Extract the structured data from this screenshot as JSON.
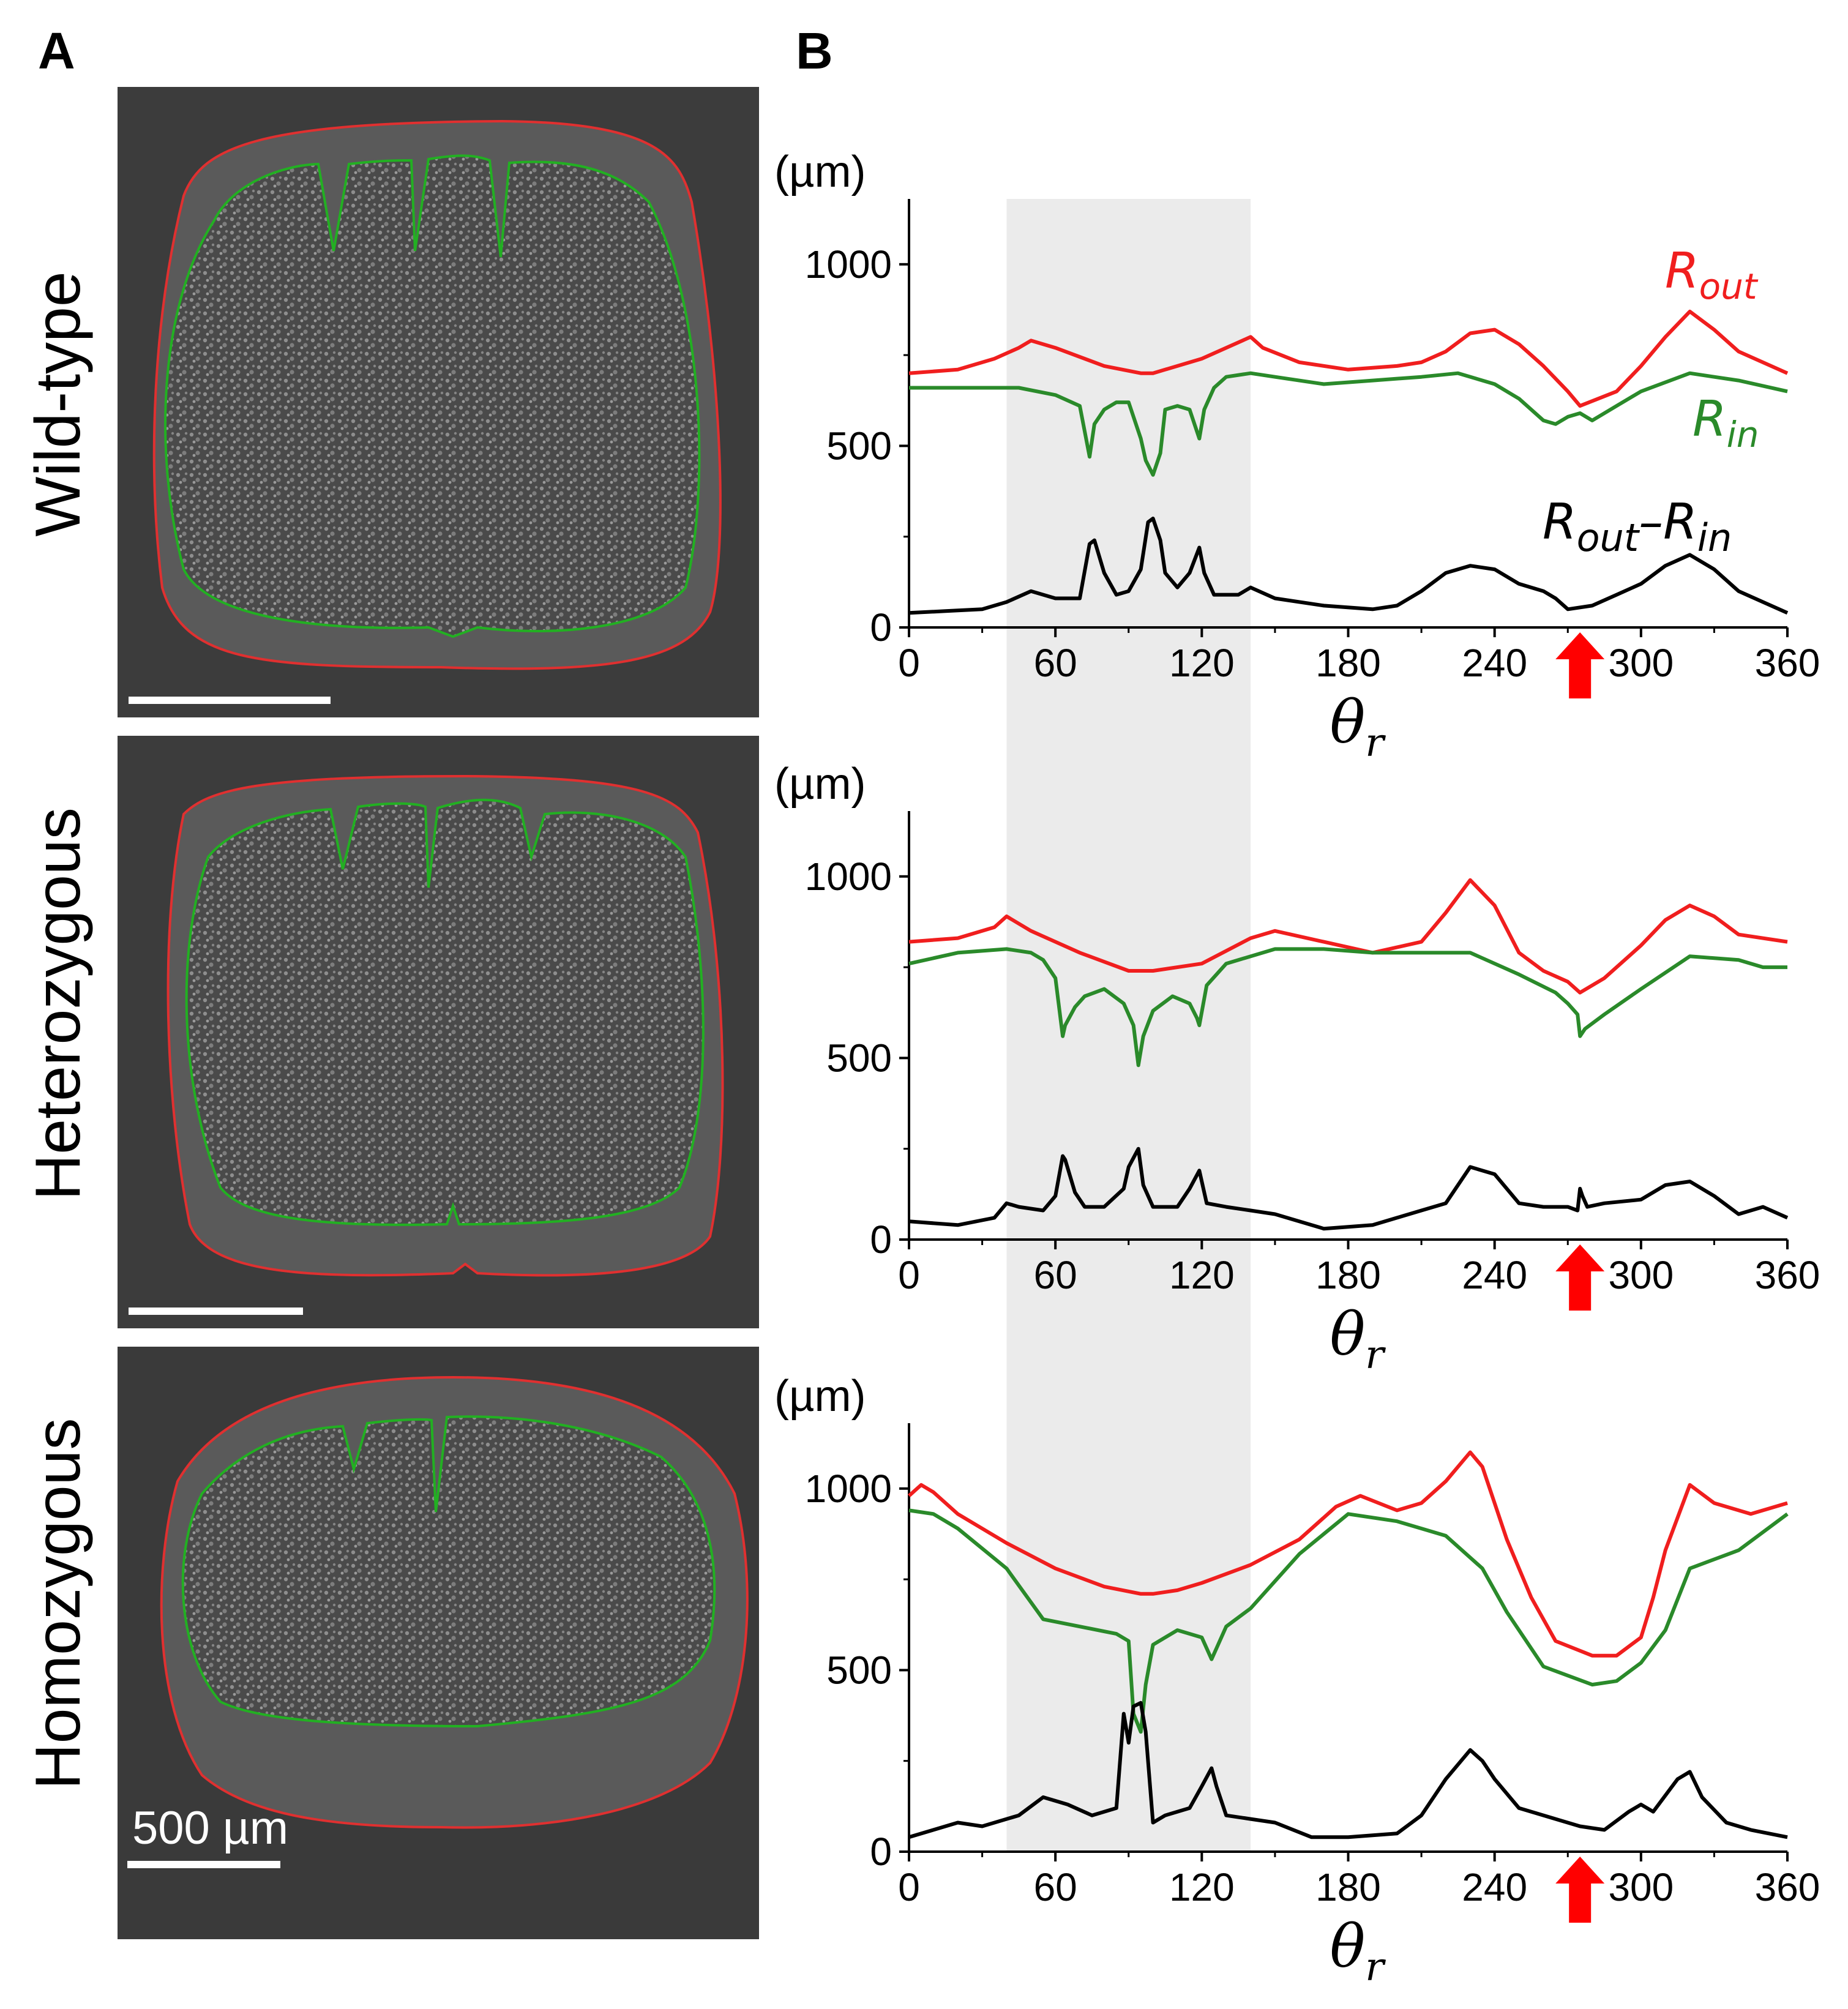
{
  "figure": {
    "panel_a_label": "A",
    "panel_b_label": "B",
    "scale_bar_label": "500 µm",
    "rows": [
      {
        "label": "Wild-type"
      },
      {
        "label": "Heterozygous"
      },
      {
        "label": "Homozygous"
      }
    ],
    "legend": {
      "rout_base": "R",
      "rout_sub": "out",
      "rin_base": "R",
      "rin_sub": "in",
      "diff_a_base": "R",
      "diff_a_sub": "out",
      "diff_minus": "–",
      "diff_b_base": "R",
      "diff_b_sub": "in"
    }
  },
  "colors": {
    "rout": "#f01e1e",
    "rin": "#2a8a2a",
    "diff": "#000000",
    "arrow": "#ff0000",
    "shade": "#ebebeb",
    "micro_bg": "#3c3c3c"
  },
  "chart_data": [
    {
      "type": "line",
      "title": "Wild-type",
      "ylabel": "(µm)",
      "xlabel_base": "θ",
      "xlabel_sub": "r",
      "xlim": [
        0,
        360
      ],
      "ylim": [
        0,
        1180
      ],
      "xticks": [
        "0",
        "60",
        "120",
        "180",
        "240",
        "300",
        "360"
      ],
      "yticks": [
        "0",
        "500",
        "1000"
      ],
      "shaded_x": [
        40,
        140
      ],
      "arrow_x": 275,
      "series": [
        {
          "name": "R_out",
          "x": [
            0,
            20,
            35,
            45,
            50,
            60,
            80,
            95,
            100,
            120,
            140,
            145,
            160,
            180,
            200,
            210,
            220,
            230,
            240,
            250,
            260,
            270,
            275,
            290,
            300,
            310,
            320,
            330,
            340,
            360
          ],
          "y": [
            700,
            710,
            740,
            770,
            790,
            770,
            720,
            700,
            700,
            740,
            800,
            770,
            730,
            710,
            720,
            730,
            760,
            810,
            820,
            780,
            720,
            650,
            610,
            650,
            720,
            800,
            870,
            820,
            760,
            700
          ]
        },
        {
          "name": "R_in",
          "x": [
            0,
            30,
            45,
            60,
            70,
            74,
            76,
            80,
            85,
            90,
            95,
            97,
            100,
            103,
            105,
            110,
            115,
            119,
            121,
            125,
            130,
            140,
            150,
            170,
            190,
            210,
            225,
            240,
            250,
            260,
            265,
            270,
            275,
            280,
            290,
            300,
            320,
            330,
            340,
            360
          ],
          "y": [
            660,
            660,
            660,
            640,
            610,
            470,
            560,
            600,
            620,
            620,
            520,
            460,
            420,
            480,
            600,
            610,
            600,
            520,
            600,
            660,
            690,
            700,
            690,
            670,
            680,
            690,
            700,
            670,
            630,
            570,
            560,
            580,
            590,
            570,
            610,
            650,
            700,
            690,
            680,
            650
          ]
        },
        {
          "name": "R_out-R_in",
          "x": [
            0,
            15,
            30,
            40,
            50,
            60,
            70,
            74,
            76,
            80,
            85,
            90,
            95,
            98,
            100,
            103,
            105,
            110,
            115,
            119,
            121,
            125,
            135,
            140,
            150,
            170,
            190,
            200,
            210,
            220,
            230,
            240,
            250,
            260,
            265,
            270,
            280,
            290,
            300,
            310,
            320,
            330,
            340,
            350,
            360
          ],
          "y": [
            40,
            45,
            50,
            70,
            100,
            80,
            80,
            230,
            240,
            150,
            90,
            100,
            160,
            290,
            300,
            240,
            150,
            110,
            150,
            220,
            150,
            90,
            90,
            110,
            80,
            60,
            50,
            60,
            100,
            150,
            170,
            160,
            120,
            100,
            80,
            50,
            60,
            90,
            120,
            170,
            200,
            160,
            100,
            70,
            40
          ]
        }
      ]
    },
    {
      "type": "line",
      "title": "Heterozygous",
      "ylabel": "(µm)",
      "xlabel_base": "θ",
      "xlabel_sub": "r",
      "xlim": [
        0,
        360
      ],
      "ylim": [
        0,
        1180
      ],
      "xticks": [
        "0",
        "60",
        "120",
        "180",
        "240",
        "300",
        "360"
      ],
      "yticks": [
        "0",
        "500",
        "1000"
      ],
      "shaded_x": [
        40,
        140
      ],
      "arrow_x": 275,
      "series": [
        {
          "name": "R_out",
          "x": [
            0,
            20,
            35,
            40,
            50,
            70,
            90,
            100,
            120,
            140,
            150,
            170,
            190,
            210,
            220,
            230,
            240,
            250,
            260,
            270,
            275,
            285,
            300,
            310,
            320,
            330,
            340,
            360
          ],
          "y": [
            820,
            830,
            860,
            890,
            850,
            790,
            740,
            740,
            760,
            830,
            850,
            820,
            790,
            820,
            900,
            990,
            920,
            790,
            740,
            710,
            680,
            720,
            810,
            880,
            920,
            890,
            840,
            820
          ]
        },
        {
          "name": "R_in",
          "x": [
            0,
            20,
            40,
            50,
            55,
            60,
            63,
            64,
            68,
            72,
            80,
            88,
            92,
            94,
            96,
            100,
            108,
            115,
            118,
            119,
            122,
            130,
            150,
            170,
            190,
            210,
            230,
            250,
            265,
            270,
            274,
            275,
            277,
            285,
            300,
            320,
            340,
            350,
            360
          ],
          "y": [
            760,
            790,
            800,
            790,
            770,
            720,
            560,
            590,
            640,
            670,
            690,
            650,
            590,
            480,
            560,
            630,
            670,
            650,
            610,
            590,
            700,
            760,
            800,
            800,
            790,
            790,
            790,
            730,
            680,
            650,
            620,
            560,
            580,
            620,
            690,
            780,
            770,
            750,
            750
          ]
        },
        {
          "name": "R_out-R_in",
          "x": [
            0,
            20,
            35,
            40,
            45,
            55,
            60,
            63,
            64,
            68,
            72,
            80,
            88,
            90,
            94,
            96,
            100,
            110,
            115,
            119,
            122,
            130,
            140,
            150,
            170,
            190,
            200,
            210,
            220,
            230,
            240,
            250,
            260,
            270,
            274,
            275,
            276,
            278,
            285,
            300,
            310,
            320,
            330,
            340,
            350,
            360
          ],
          "y": [
            50,
            40,
            60,
            100,
            90,
            80,
            120,
            230,
            220,
            130,
            90,
            90,
            140,
            200,
            250,
            150,
            90,
            90,
            140,
            190,
            100,
            90,
            80,
            70,
            30,
            40,
            60,
            80,
            100,
            200,
            180,
            100,
            90,
            90,
            80,
            140,
            120,
            90,
            100,
            110,
            150,
            160,
            120,
            70,
            90,
            60
          ]
        }
      ]
    },
    {
      "type": "line",
      "title": "Homozygous",
      "ylabel": "(µm)",
      "xlabel_base": "θ",
      "xlabel_sub": "r",
      "xlim": [
        0,
        360
      ],
      "ylim": [
        0,
        1180
      ],
      "xticks": [
        "0",
        "60",
        "120",
        "180",
        "240",
        "300",
        "360"
      ],
      "yticks": [
        "0",
        "500",
        "1000"
      ],
      "shaded_x": [
        40,
        140
      ],
      "arrow_x": 275,
      "series": [
        {
          "name": "R_out",
          "x": [
            0,
            5,
            10,
            20,
            40,
            60,
            80,
            95,
            100,
            110,
            120,
            140,
            160,
            175,
            185,
            200,
            210,
            220,
            230,
            235,
            245,
            255,
            265,
            280,
            290,
            300,
            305,
            310,
            320,
            330,
            345,
            360
          ],
          "y": [
            980,
            1010,
            990,
            930,
            850,
            780,
            730,
            710,
            710,
            720,
            740,
            790,
            860,
            950,
            980,
            940,
            960,
            1020,
            1100,
            1060,
            860,
            700,
            580,
            540,
            540,
            590,
            700,
            830,
            1010,
            960,
            930,
            960
          ]
        },
        {
          "name": "R_in",
          "x": [
            0,
            10,
            20,
            40,
            55,
            70,
            85,
            90,
            92,
            95,
            97,
            100,
            110,
            120,
            124,
            126,
            130,
            140,
            160,
            180,
            200,
            220,
            235,
            245,
            260,
            280,
            290,
            300,
            310,
            320,
            340,
            360
          ],
          "y": [
            940,
            930,
            890,
            780,
            640,
            620,
            600,
            580,
            380,
            330,
            460,
            570,
            610,
            590,
            530,
            560,
            620,
            670,
            820,
            930,
            910,
            870,
            780,
            660,
            510,
            460,
            470,
            520,
            610,
            780,
            830,
            930
          ]
        },
        {
          "name": "R_out-R_in",
          "x": [
            0,
            10,
            20,
            30,
            45,
            55,
            65,
            75,
            85,
            88,
            90,
            92,
            95,
            97,
            100,
            105,
            115,
            120,
            124,
            126,
            130,
            140,
            150,
            165,
            180,
            200,
            210,
            220,
            230,
            235,
            240,
            250,
            265,
            275,
            285,
            295,
            300,
            305,
            315,
            320,
            325,
            335,
            345,
            360
          ],
          "y": [
            40,
            60,
            80,
            70,
            100,
            150,
            130,
            100,
            120,
            380,
            300,
            400,
            410,
            330,
            80,
            100,
            120,
            180,
            230,
            180,
            100,
            90,
            80,
            40,
            40,
            50,
            100,
            200,
            280,
            250,
            200,
            120,
            90,
            70,
            60,
            110,
            130,
            110,
            200,
            220,
            150,
            80,
            60,
            40
          ]
        }
      ]
    }
  ]
}
